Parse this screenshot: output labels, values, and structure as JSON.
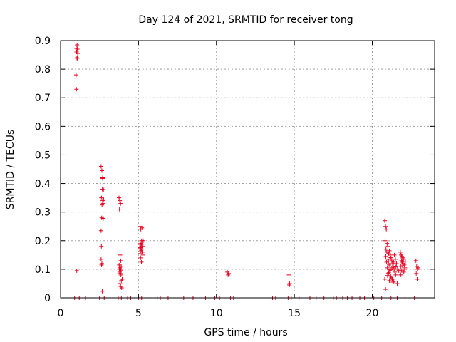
{
  "chart_data": {
    "type": "scatter",
    "title": "Day 124 of 2021, SRMTID for receiver tong",
    "xlabel": "GPS time / hours",
    "ylabel": "SRMTID / TECUs",
    "xlim": [
      0,
      24
    ],
    "ylim": [
      0,
      0.9
    ],
    "xticks": [
      0,
      5,
      10,
      15,
      20
    ],
    "yticks": [
      0,
      0.1,
      0.2,
      0.3,
      0.4,
      0.5,
      0.6,
      0.7,
      0.8,
      0.9
    ],
    "grid": true,
    "marker": "+",
    "colors": {
      "points": "#e8001e",
      "grid": "#a0a0a0",
      "axes": "#000000"
    },
    "series": [
      {
        "name": "SRMTID",
        "points": [
          [
            1.0,
            0.873
          ],
          [
            1.03,
            0.86
          ],
          [
            1.05,
            0.84
          ],
          [
            1.0,
            0.78
          ],
          [
            1.02,
            0.73
          ],
          [
            1.06,
            0.885
          ],
          [
            1.08,
            0.87
          ],
          [
            1.1,
            0.855
          ],
          [
            1.04,
            0.095
          ],
          [
            1.07,
            0.838
          ],
          [
            2.6,
            0.46
          ],
          [
            2.65,
            0.445
          ],
          [
            2.7,
            0.42
          ],
          [
            2.72,
            0.418
          ],
          [
            2.68,
            0.38
          ],
          [
            2.75,
            0.378
          ],
          [
            2.62,
            0.35
          ],
          [
            2.7,
            0.34
          ],
          [
            2.73,
            0.33
          ],
          [
            2.66,
            0.325
          ],
          [
            2.64,
            0.28
          ],
          [
            2.74,
            0.278
          ],
          [
            2.6,
            0.235
          ],
          [
            2.62,
            0.18
          ],
          [
            2.65,
            0.12
          ],
          [
            2.63,
            0.115
          ],
          [
            2.6,
            0.135
          ],
          [
            2.67,
            0.023
          ],
          [
            2.7,
            0.418
          ],
          [
            2.76,
            0.345
          ],
          [
            3.75,
            0.35
          ],
          [
            3.8,
            0.34
          ],
          [
            3.85,
            0.33
          ],
          [
            3.78,
            0.31
          ],
          [
            3.82,
            0.15
          ],
          [
            3.86,
            0.13
          ],
          [
            3.76,
            0.115
          ],
          [
            3.8,
            0.105
          ],
          [
            3.84,
            0.1
          ],
          [
            3.88,
            0.095
          ],
          [
            3.79,
            0.09
          ],
          [
            3.83,
            0.085
          ],
          [
            3.87,
            0.08
          ],
          [
            3.9,
            0.06
          ],
          [
            3.81,
            0.05
          ],
          [
            3.85,
            0.04
          ],
          [
            3.92,
            0.035
          ],
          [
            3.95,
            0.065
          ],
          [
            3.77,
            0.1
          ],
          [
            3.89,
            0.11
          ],
          [
            5.1,
            0.25
          ],
          [
            5.15,
            0.24
          ],
          [
            5.2,
            0.2
          ],
          [
            5.22,
            0.195
          ],
          [
            5.12,
            0.19
          ],
          [
            5.18,
            0.185
          ],
          [
            5.25,
            0.18
          ],
          [
            5.14,
            0.175
          ],
          [
            5.2,
            0.17
          ],
          [
            5.16,
            0.165
          ],
          [
            5.24,
            0.16
          ],
          [
            5.1,
            0.155
          ],
          [
            5.28,
            0.15
          ],
          [
            5.13,
            0.14
          ],
          [
            5.19,
            0.125
          ],
          [
            5.3,
            0.2
          ],
          [
            5.08,
            0.175
          ],
          [
            5.22,
            0.245
          ],
          [
            10.7,
            0.09
          ],
          [
            10.75,
            0.08
          ],
          [
            10.78,
            0.085
          ],
          [
            14.65,
            0.08
          ],
          [
            14.7,
            0.05
          ],
          [
            14.68,
            0.045
          ],
          [
            20.8,
            0.27
          ],
          [
            20.85,
            0.25
          ],
          [
            20.9,
            0.24
          ],
          [
            20.82,
            0.2
          ],
          [
            20.95,
            0.19
          ],
          [
            21.0,
            0.18
          ],
          [
            20.88,
            0.17
          ],
          [
            21.1,
            0.165
          ],
          [
            20.93,
            0.16
          ],
          [
            21.05,
            0.155
          ],
          [
            21.15,
            0.15
          ],
          [
            20.87,
            0.145
          ],
          [
            21.2,
            0.14
          ],
          [
            21.0,
            0.135
          ],
          [
            21.25,
            0.13
          ],
          [
            20.92,
            0.125
          ],
          [
            21.3,
            0.12
          ],
          [
            21.08,
            0.115
          ],
          [
            21.35,
            0.11
          ],
          [
            20.97,
            0.105
          ],
          [
            21.4,
            0.1
          ],
          [
            21.12,
            0.095
          ],
          [
            21.45,
            0.09
          ],
          [
            21.02,
            0.085
          ],
          [
            21.5,
            0.08
          ],
          [
            21.18,
            0.075
          ],
          [
            21.22,
            0.07
          ],
          [
            21.28,
            0.065
          ],
          [
            21.1,
            0.06
          ],
          [
            21.32,
            0.055
          ],
          [
            20.85,
            0.03
          ],
          [
            20.8,
            0.065
          ],
          [
            21.38,
            0.058
          ],
          [
            21.6,
            0.05
          ],
          [
            21.55,
            0.12
          ],
          [
            21.48,
            0.135
          ],
          [
            21.42,
            0.15
          ],
          [
            21.36,
            0.125
          ],
          [
            21.26,
            0.105
          ],
          [
            21.16,
            0.098
          ],
          [
            21.06,
            0.088
          ],
          [
            20.98,
            0.078
          ],
          [
            21.52,
            0.108
          ],
          [
            21.62,
            0.1
          ],
          [
            21.7,
            0.095
          ],
          [
            21.14,
            0.142
          ],
          [
            21.04,
            0.128
          ],
          [
            21.8,
            0.16
          ],
          [
            21.85,
            0.15
          ],
          [
            21.9,
            0.145
          ],
          [
            21.95,
            0.14
          ],
          [
            22.0,
            0.135
          ],
          [
            21.88,
            0.13
          ],
          [
            21.92,
            0.125
          ],
          [
            21.98,
            0.12
          ],
          [
            22.05,
            0.115
          ],
          [
            21.84,
            0.11
          ],
          [
            22.1,
            0.105
          ],
          [
            21.96,
            0.1
          ],
          [
            21.86,
            0.095
          ],
          [
            22.02,
            0.09
          ],
          [
            21.82,
            0.08
          ],
          [
            22.08,
            0.1
          ],
          [
            21.94,
            0.112
          ],
          [
            22.12,
            0.128
          ],
          [
            22.8,
            0.13
          ],
          [
            22.85,
            0.11
          ],
          [
            22.9,
            0.1
          ],
          [
            22.82,
            0.085
          ],
          [
            22.88,
            0.065
          ],
          [
            22.95,
            0.105
          ],
          [
            0.9,
            0.0
          ],
          [
            1.2,
            0.0
          ],
          [
            1.6,
            0.0
          ],
          [
            2.5,
            0.0
          ],
          [
            2.8,
            0.0
          ],
          [
            3.7,
            0.0
          ],
          [
            3.9,
            0.0
          ],
          [
            4.3,
            0.0
          ],
          [
            4.5,
            0.0
          ],
          [
            5.0,
            0.0
          ],
          [
            5.2,
            0.0
          ],
          [
            6.2,
            0.0
          ],
          [
            6.4,
            0.0
          ],
          [
            6.9,
            0.0
          ],
          [
            7.9,
            0.0
          ],
          [
            8.5,
            0.0
          ],
          [
            9.3,
            0.0
          ],
          [
            9.9,
            0.0
          ],
          [
            10.2,
            0.0
          ],
          [
            10.9,
            0.0
          ],
          [
            11.1,
            0.0
          ],
          [
            13.6,
            0.0
          ],
          [
            13.8,
            0.0
          ],
          [
            14.6,
            0.0
          ],
          [
            14.8,
            0.0
          ],
          [
            15.3,
            0.0
          ],
          [
            16.0,
            0.0
          ],
          [
            16.4,
            0.0
          ],
          [
            16.9,
            0.0
          ],
          [
            17.5,
            0.0
          ],
          [
            17.7,
            0.0
          ],
          [
            18.1,
            0.0
          ],
          [
            18.4,
            0.0
          ],
          [
            18.7,
            0.0
          ],
          [
            19.2,
            0.0
          ],
          [
            19.5,
            0.0
          ],
          [
            20.1,
            0.0
          ],
          [
            20.6,
            0.0
          ],
          [
            21.2,
            0.0
          ],
          [
            21.6,
            0.0
          ],
          [
            22.1,
            0.0
          ],
          [
            22.7,
            0.0
          ]
        ]
      }
    ]
  }
}
